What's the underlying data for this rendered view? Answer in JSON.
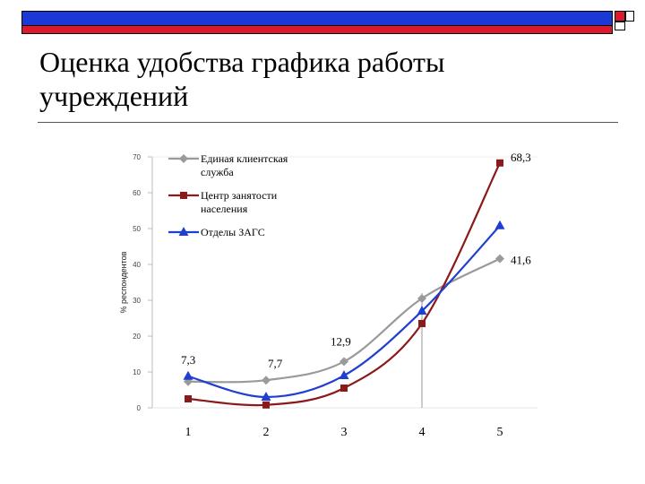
{
  "slide_title": "Оценка удобства графика работы учреждений",
  "chart_data": {
    "type": "line",
    "ylabel": "% респондентов",
    "ylim": [
      0,
      70
    ],
    "yticks": [
      0,
      10,
      20,
      30,
      40,
      50,
      60,
      70
    ],
    "x": [
      1,
      2,
      3,
      4,
      5
    ],
    "series": [
      {
        "name": "Единая клиентская служба",
        "color": "#9a9a9a",
        "marker": "diamond",
        "values": [
          7.3,
          7.7,
          12.9,
          30.5,
          41.6
        ]
      },
      {
        "name": "Центр занятости населения",
        "color": "#8b1a1a",
        "marker": "square",
        "values": [
          2.5,
          0.8,
          5.5,
          23.5,
          68.3
        ]
      },
      {
        "name": "Отделы ЗАГС",
        "color": "#1f3fd0",
        "marker": "triangle",
        "values": [
          8.8,
          3.0,
          9.0,
          27.0,
          50.8
        ]
      }
    ],
    "annotations": [
      {
        "text": "7,3",
        "x": 1,
        "y": 7.3
      },
      {
        "text": "7,7",
        "x": 2,
        "y": 7.7
      },
      {
        "text": "12,9",
        "x": 3,
        "y": 12.9
      },
      {
        "text": "68,3",
        "x": 5,
        "y": 68.3
      },
      {
        "text": "41,6",
        "x": 5,
        "y": 41.6
      }
    ],
    "legend_position": "top-left"
  }
}
